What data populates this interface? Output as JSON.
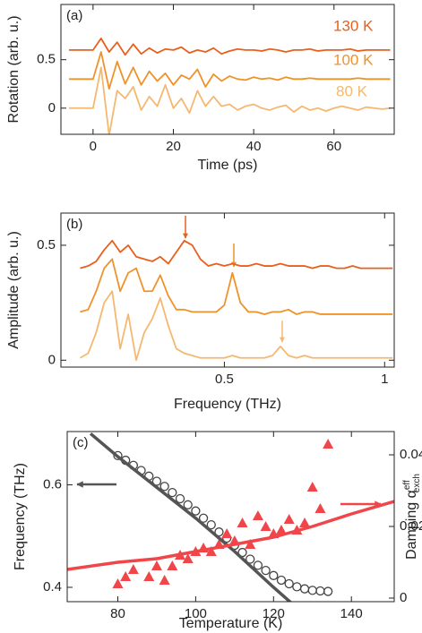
{
  "chart_data": [
    {
      "type": "line",
      "label": "(a)",
      "xlabel": "Time (ps)",
      "ylabel": "Rotation (arb. u.)",
      "xlim": [
        -8,
        75
      ],
      "ylim": [
        -0.27,
        1.07
      ],
      "xticks": [
        0,
        20,
        40,
        60
      ],
      "yticks": [
        0,
        0.5
      ],
      "x": [
        -6,
        -4,
        -2,
        0,
        2,
        4,
        6,
        8,
        10,
        12,
        14,
        16,
        18,
        20,
        22,
        24,
        26,
        28,
        30,
        32,
        34,
        36,
        38,
        40,
        42,
        44,
        46,
        48,
        50,
        52,
        54,
        56,
        58,
        60,
        62,
        64,
        66,
        68,
        70,
        72,
        74
      ],
      "series": [
        {
          "name": "130 K",
          "color": "#e8601c",
          "values": [
            0.6,
            0.6,
            0.6,
            0.6,
            0.72,
            0.58,
            0.68,
            0.55,
            0.66,
            0.56,
            0.62,
            0.57,
            0.61,
            0.6,
            0.63,
            0.57,
            0.6,
            0.58,
            0.62,
            0.56,
            0.59,
            0.61,
            0.6,
            0.6,
            0.59,
            0.61,
            0.6,
            0.58,
            0.6,
            0.6,
            0.61,
            0.59,
            0.6,
            0.6,
            0.6,
            0.61,
            0.59,
            0.6,
            0.6,
            0.6,
            0.6
          ]
        },
        {
          "name": "100 K",
          "color": "#f0922a",
          "values": [
            0.3,
            0.3,
            0.3,
            0.3,
            0.58,
            0.2,
            0.48,
            0.25,
            0.42,
            0.24,
            0.38,
            0.28,
            0.36,
            0.24,
            0.34,
            0.3,
            0.4,
            0.22,
            0.35,
            0.28,
            0.33,
            0.3,
            0.29,
            0.32,
            0.3,
            0.31,
            0.29,
            0.32,
            0.3,
            0.3,
            0.31,
            0.3,
            0.3,
            0.3,
            0.3,
            0.3,
            0.31,
            0.3,
            0.3,
            0.3,
            0.3
          ]
        },
        {
          "name": "80 K",
          "color": "#f5b870",
          "values": [
            0,
            0,
            0,
            0,
            0.42,
            -0.28,
            0.18,
            0.1,
            0.22,
            -0.02,
            0.12,
            0.02,
            0.24,
            0,
            0.1,
            -0.05,
            0.18,
            0.02,
            0.12,
            0.02,
            0.04,
            -0.02,
            0.02,
            0.04,
            0,
            -0.02,
            0.01,
            0.03,
            -0.04,
            0.02,
            -0.02,
            0,
            -0.03,
            0,
            0.02,
            0,
            -0.02,
            0.01,
            0,
            -0.01,
            0
          ]
        }
      ]
    },
    {
      "type": "line",
      "label": "(b)",
      "xlabel": "Frequency (THz)",
      "ylabel": "Amplitude (arb. u.)",
      "xlim": [
        -0.01,
        1.03
      ],
      "ylim": [
        -0.03,
        0.64
      ],
      "xticks": [
        0.5,
        1
      ],
      "yticks": [
        0,
        0.5
      ],
      "x": [
        0.05,
        0.075,
        0.1,
        0.125,
        0.15,
        0.175,
        0.2,
        0.225,
        0.25,
        0.275,
        0.3,
        0.325,
        0.35,
        0.375,
        0.4,
        0.425,
        0.45,
        0.475,
        0.5,
        0.525,
        0.55,
        0.575,
        0.6,
        0.625,
        0.65,
        0.675,
        0.7,
        0.725,
        0.75,
        0.775,
        0.8,
        0.825,
        0.85,
        0.875,
        0.9,
        0.925,
        0.95,
        0.975,
        1,
        1.025
      ],
      "series": [
        {
          "color": "#e8601c",
          "values": [
            0.4,
            0.41,
            0.43,
            0.48,
            0.52,
            0.47,
            0.5,
            0.45,
            0.44,
            0.43,
            0.45,
            0.42,
            0.47,
            0.52,
            0.5,
            0.44,
            0.41,
            0.42,
            0.41,
            0.42,
            0.41,
            0.41,
            0.42,
            0.41,
            0.41,
            0.42,
            0.41,
            0.41,
            0.41,
            0.4,
            0.41,
            0.41,
            0.4,
            0.4,
            0.41,
            0.4,
            0.4,
            0.4,
            0.4,
            0.4
          ]
        },
        {
          "color": "#f0922a",
          "values": [
            0.21,
            0.22,
            0.3,
            0.4,
            0.44,
            0.3,
            0.38,
            0.4,
            0.3,
            0.3,
            0.37,
            0.28,
            0.22,
            0.22,
            0.21,
            0.21,
            0.21,
            0.21,
            0.24,
            0.38,
            0.25,
            0.21,
            0.21,
            0.2,
            0.21,
            0.21,
            0.22,
            0.2,
            0.21,
            0.21,
            0.2,
            0.2,
            0.2,
            0.2,
            0.2,
            0.2,
            0.2,
            0.2,
            0.2,
            0.2
          ]
        },
        {
          "color": "#f5b870",
          "values": [
            0.01,
            0.03,
            0.12,
            0.25,
            0.3,
            0.05,
            0.2,
            0,
            0.12,
            0.18,
            0.27,
            0.15,
            0.05,
            0.03,
            0.02,
            0.01,
            0.01,
            0.01,
            0.01,
            0.02,
            0.01,
            0.01,
            0.01,
            0.01,
            0.02,
            0.06,
            0.02,
            0.01,
            0.02,
            0.01,
            0.01,
            0.01,
            0.01,
            0.01,
            0.01,
            0.01,
            0.01,
            0.01,
            0.01,
            0.01
          ]
        }
      ]
    },
    {
      "type": "scatter",
      "label": "(c)",
      "xlabel": "Temperature (K)",
      "ylabel": "Frequency (THz)",
      "y2label": "Damping α",
      "y2label_sup": "eff",
      "y2label_sub": "exch",
      "xlim": [
        67,
        151
      ],
      "ylim": [
        0.372,
        0.704
      ],
      "y2lim": [
        -0.001,
        0.0465
      ],
      "xticks": [
        80,
        100,
        120,
        140
      ],
      "yticks": [
        0.4,
        0.6
      ],
      "y2ticks": [
        0,
        0.02,
        0.04
      ],
      "series": [
        {
          "type": "scatter",
          "marker": "circle",
          "color": "#444444",
          "x": [
            80,
            82,
            84,
            86,
            88,
            90,
            92,
            94,
            96,
            98,
            100,
            102,
            104,
            106,
            108,
            110,
            112,
            114,
            116,
            118,
            120,
            122,
            124,
            126,
            128,
            130,
            132,
            134
          ],
          "values": [
            0.657,
            0.648,
            0.638,
            0.628,
            0.617,
            0.607,
            0.597,
            0.585,
            0.573,
            0.561,
            0.549,
            0.535,
            0.522,
            0.508,
            0.496,
            0.482,
            0.468,
            0.455,
            0.443,
            0.433,
            0.423,
            0.414,
            0.407,
            0.401,
            0.397,
            0.394,
            0.393,
            0.392
          ]
        },
        {
          "type": "scatter",
          "marker": "triangle",
          "color": "#f0464a",
          "axis": "y2",
          "x": [
            80,
            82,
            84,
            88,
            90,
            92,
            94,
            96,
            98,
            100,
            102,
            104,
            106,
            108,
            110,
            112,
            114,
            116,
            118,
            120,
            122,
            124,
            126,
            128,
            130,
            132,
            134
          ],
          "values": [
            0.004,
            0.006,
            0.008,
            0.006,
            0.009,
            0.005,
            0.009,
            0.012,
            0.011,
            0.013,
            0.014,
            0.013,
            0.015,
            0.018,
            0.016,
            0.021,
            0.015,
            0.023,
            0.02,
            0.018,
            0.019,
            0.022,
            0.019,
            0.021,
            0.031,
            0.025,
            0.043
          ]
        },
        {
          "type": "line",
          "color": "#555555",
          "x": [
            73,
            80,
            90,
            100,
            110,
            120,
            126
          ],
          "values": [
            0.7,
            0.655,
            0.595,
            0.535,
            0.47,
            0.4,
            0.36
          ]
        },
        {
          "type": "line",
          "color": "#f0464a",
          "axis": "y2",
          "x": [
            67,
            80,
            90,
            100,
            110,
            120,
            130,
            140,
            151
          ],
          "values": [
            0.008,
            0.01,
            0.011,
            0.013,
            0.015,
            0.017,
            0.02,
            0.0235,
            0.027
          ]
        }
      ]
    }
  ]
}
